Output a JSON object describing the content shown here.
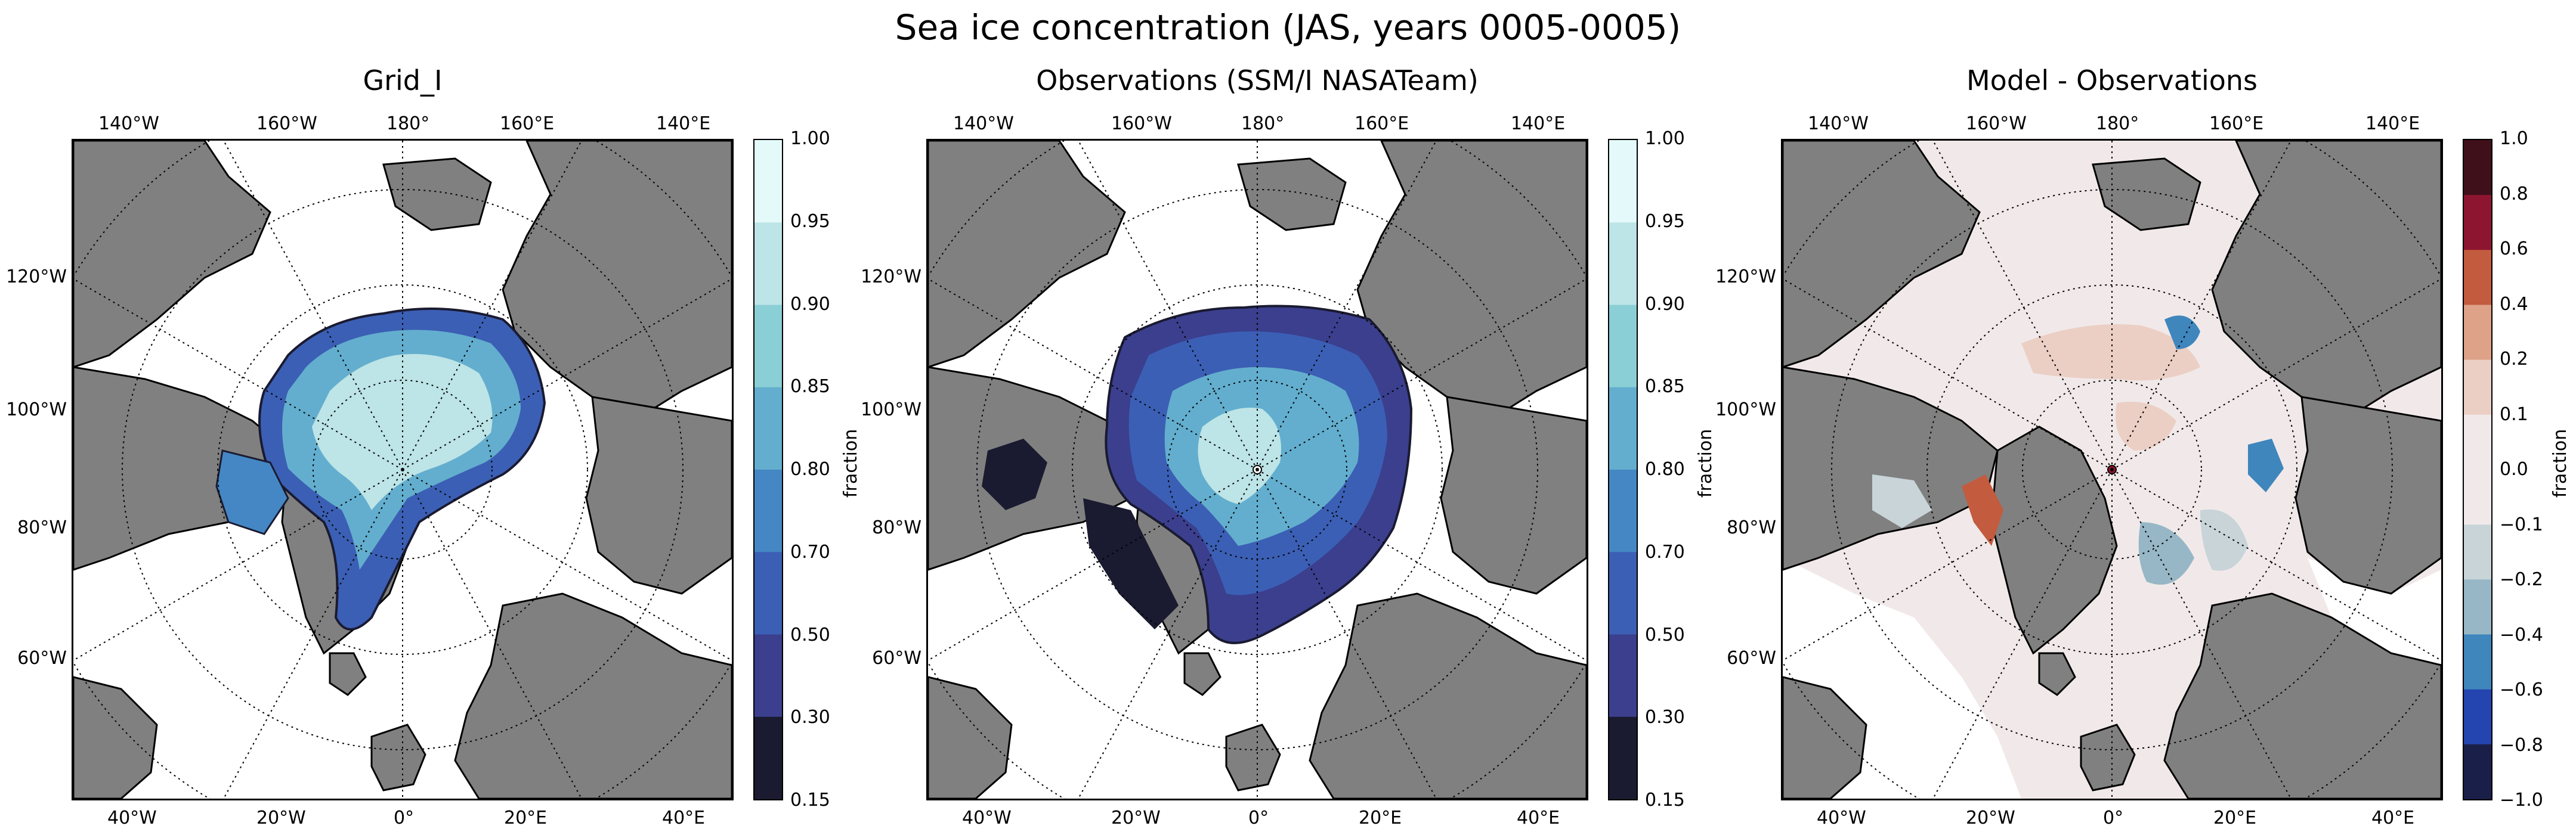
{
  "title": "Sea ice concentration (JAS, years 0005-0005)",
  "colors": {
    "land": "#808080",
    "ocean": "#ffffff",
    "diff_zero": "#f1e9e9"
  },
  "panels": [
    {
      "id": "grid",
      "title": "Grid_I",
      "colorbar_label": "fraction",
      "levels": [
        "1.00",
        "0.95",
        "0.90",
        "0.85",
        "0.80",
        "0.70",
        "0.50",
        "0.30",
        "0.15"
      ],
      "colors": [
        "#e4fafa",
        "#bde4e6",
        "#8acfd5",
        "#63aece",
        "#4587c4",
        "#3b5fb4",
        "#3b3f8e",
        "#1a1a30"
      ]
    },
    {
      "id": "obs",
      "title": "Observations (SSM/I NASATeam)",
      "colorbar_label": "fraction",
      "levels": [
        "1.00",
        "0.95",
        "0.90",
        "0.85",
        "0.80",
        "0.70",
        "0.50",
        "0.30",
        "0.15"
      ],
      "colors": [
        "#e4fafa",
        "#bde4e6",
        "#8acfd5",
        "#63aece",
        "#4587c4",
        "#3b5fb4",
        "#3b3f8e",
        "#1a1a30"
      ]
    },
    {
      "id": "diff",
      "title": "Model - Observations",
      "colorbar_label": "fraction",
      "levels": [
        "1.0",
        "0.8",
        "0.6",
        "0.4",
        "0.2",
        "0.1",
        "0.0",
        "−0.1",
        "−0.2",
        "−0.4",
        "−0.6",
        "−0.8",
        "−1.0"
      ],
      "colors": [
        "#3f0f1a",
        "#8e1530",
        "#c35b3e",
        "#dea288",
        "#ebcfc5",
        "#f1e9e9",
        "#f1e9e9",
        "#c8d4d8",
        "#97b7c6",
        "#3f86bd",
        "#2444b0",
        "#1a1f4a"
      ]
    }
  ],
  "lon_labels_top": [
    "140°W",
    "160°W",
    "180°",
    "160°E",
    "140°E"
  ],
  "lon_labels_bottom": [
    "40°W",
    "20°W",
    "0°",
    "20°E",
    "40°E"
  ],
  "lon_labels_left": [
    "120°W",
    "100°W",
    "80°W",
    "60°W"
  ]
}
